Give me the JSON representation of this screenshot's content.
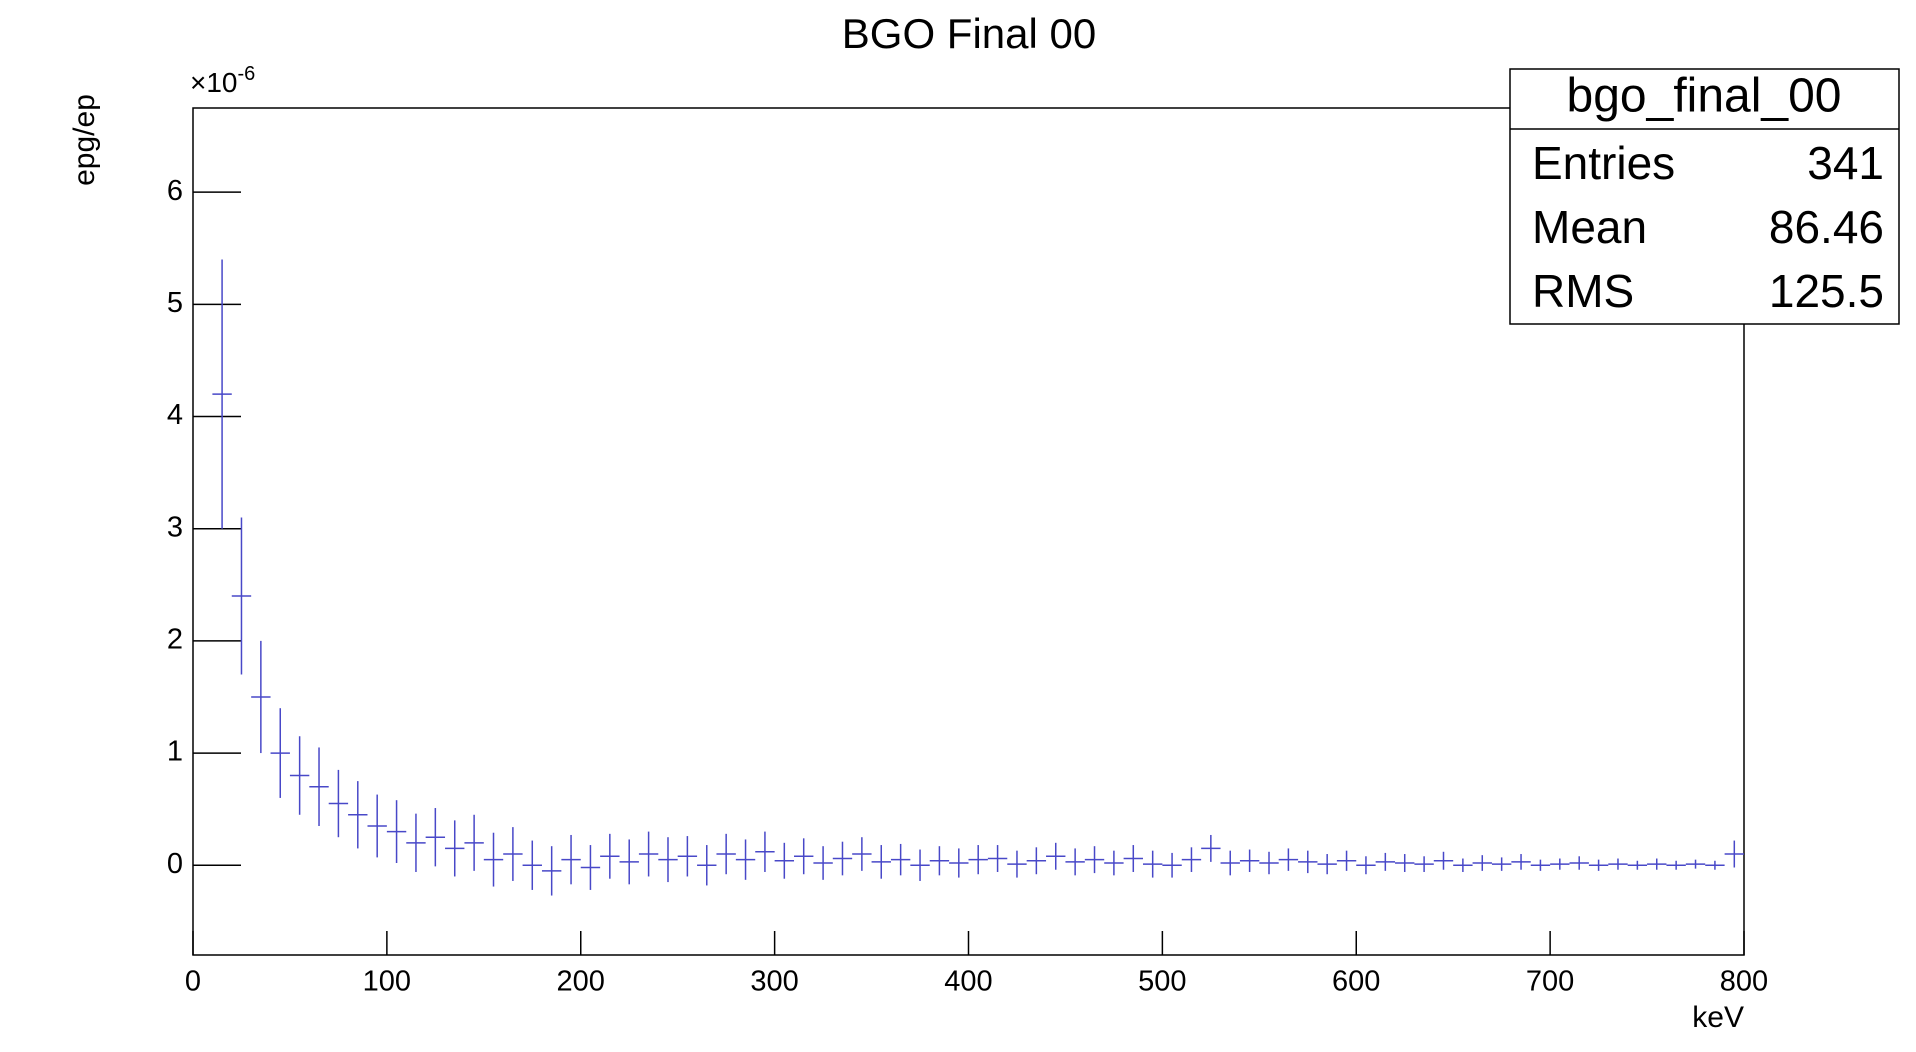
{
  "chart_data": {
    "type": "errorbar",
    "title": "BGO Final 00",
    "y_label": "epg/ep",
    "x_label": "keV",
    "y_multiplier": "×10",
    "y_multiplier_exponent": "-6",
    "x": [
      15,
      25,
      35,
      45,
      55,
      65,
      75,
      85,
      95,
      105,
      115,
      125,
      135,
      145,
      155,
      165,
      175,
      185,
      195,
      205,
      215,
      225,
      235,
      245,
      255,
      265,
      275,
      285,
      295,
      305,
      315,
      325,
      335,
      345,
      355,
      365,
      375,
      385,
      395,
      405,
      415,
      425,
      435,
      445,
      455,
      465,
      475,
      485,
      495,
      505,
      515,
      525,
      535,
      545,
      555,
      565,
      575,
      585,
      595,
      605,
      615,
      625,
      635,
      645,
      655,
      665,
      675,
      685,
      695,
      705,
      715,
      725,
      735,
      745,
      755,
      765,
      775,
      785,
      795
    ],
    "series": [
      {
        "name": "bgo_final_00",
        "color": "#4848c8",
        "values": [
          4.2,
          2.4,
          1.5,
          1.0,
          0.8,
          0.7,
          0.55,
          0.45,
          0.35,
          0.3,
          0.2,
          0.25,
          0.15,
          0.2,
          0.05,
          0.1,
          0.0,
          -0.05,
          0.05,
          -0.02,
          0.08,
          0.03,
          0.1,
          0.05,
          0.08,
          0.0,
          0.1,
          0.05,
          0.12,
          0.04,
          0.08,
          0.02,
          0.06,
          0.1,
          0.03,
          0.05,
          0.0,
          0.04,
          0.02,
          0.05,
          0.06,
          0.01,
          0.04,
          0.08,
          0.03,
          0.05,
          0.02,
          0.06,
          0.01,
          0.0,
          0.05,
          0.15,
          0.02,
          0.04,
          0.02,
          0.05,
          0.03,
          0.01,
          0.04,
          0.0,
          0.03,
          0.02,
          0.01,
          0.04,
          0.0,
          0.02,
          0.01,
          0.03,
          0.0,
          0.01,
          0.02,
          0.0,
          0.01,
          0.0,
          0.01,
          0.0,
          0.01,
          0.0,
          0.1
        ],
        "errors": [
          1.2,
          0.7,
          0.5,
          0.4,
          0.35,
          0.35,
          0.3,
          0.3,
          0.28,
          0.28,
          0.26,
          0.26,
          0.25,
          0.25,
          0.24,
          0.24,
          0.22,
          0.22,
          0.22,
          0.2,
          0.2,
          0.2,
          0.2,
          0.2,
          0.18,
          0.18,
          0.18,
          0.18,
          0.18,
          0.16,
          0.16,
          0.15,
          0.15,
          0.15,
          0.15,
          0.14,
          0.14,
          0.13,
          0.13,
          0.13,
          0.12,
          0.12,
          0.12,
          0.12,
          0.12,
          0.12,
          0.11,
          0.12,
          0.12,
          0.11,
          0.11,
          0.12,
          0.11,
          0.1,
          0.1,
          0.1,
          0.1,
          0.09,
          0.09,
          0.08,
          0.08,
          0.08,
          0.07,
          0.08,
          0.06,
          0.07,
          0.06,
          0.07,
          0.05,
          0.05,
          0.06,
          0.05,
          0.05,
          0.04,
          0.05,
          0.04,
          0.04,
          0.04,
          0.12
        ]
      }
    ],
    "xlim": [
      0,
      800
    ],
    "xticks": [
      0,
      100,
      200,
      300,
      400,
      500,
      600,
      700,
      800
    ],
    "ylim": [
      -0.8,
      6.75
    ],
    "yticks": [
      0,
      1,
      2,
      3,
      4,
      5,
      6
    ],
    "stats_box": {
      "title": "bgo_final_00",
      "rows": [
        [
          "Entries",
          341
        ],
        [
          "Mean",
          86.46
        ],
        [
          "RMS",
          125.5
        ]
      ]
    }
  }
}
